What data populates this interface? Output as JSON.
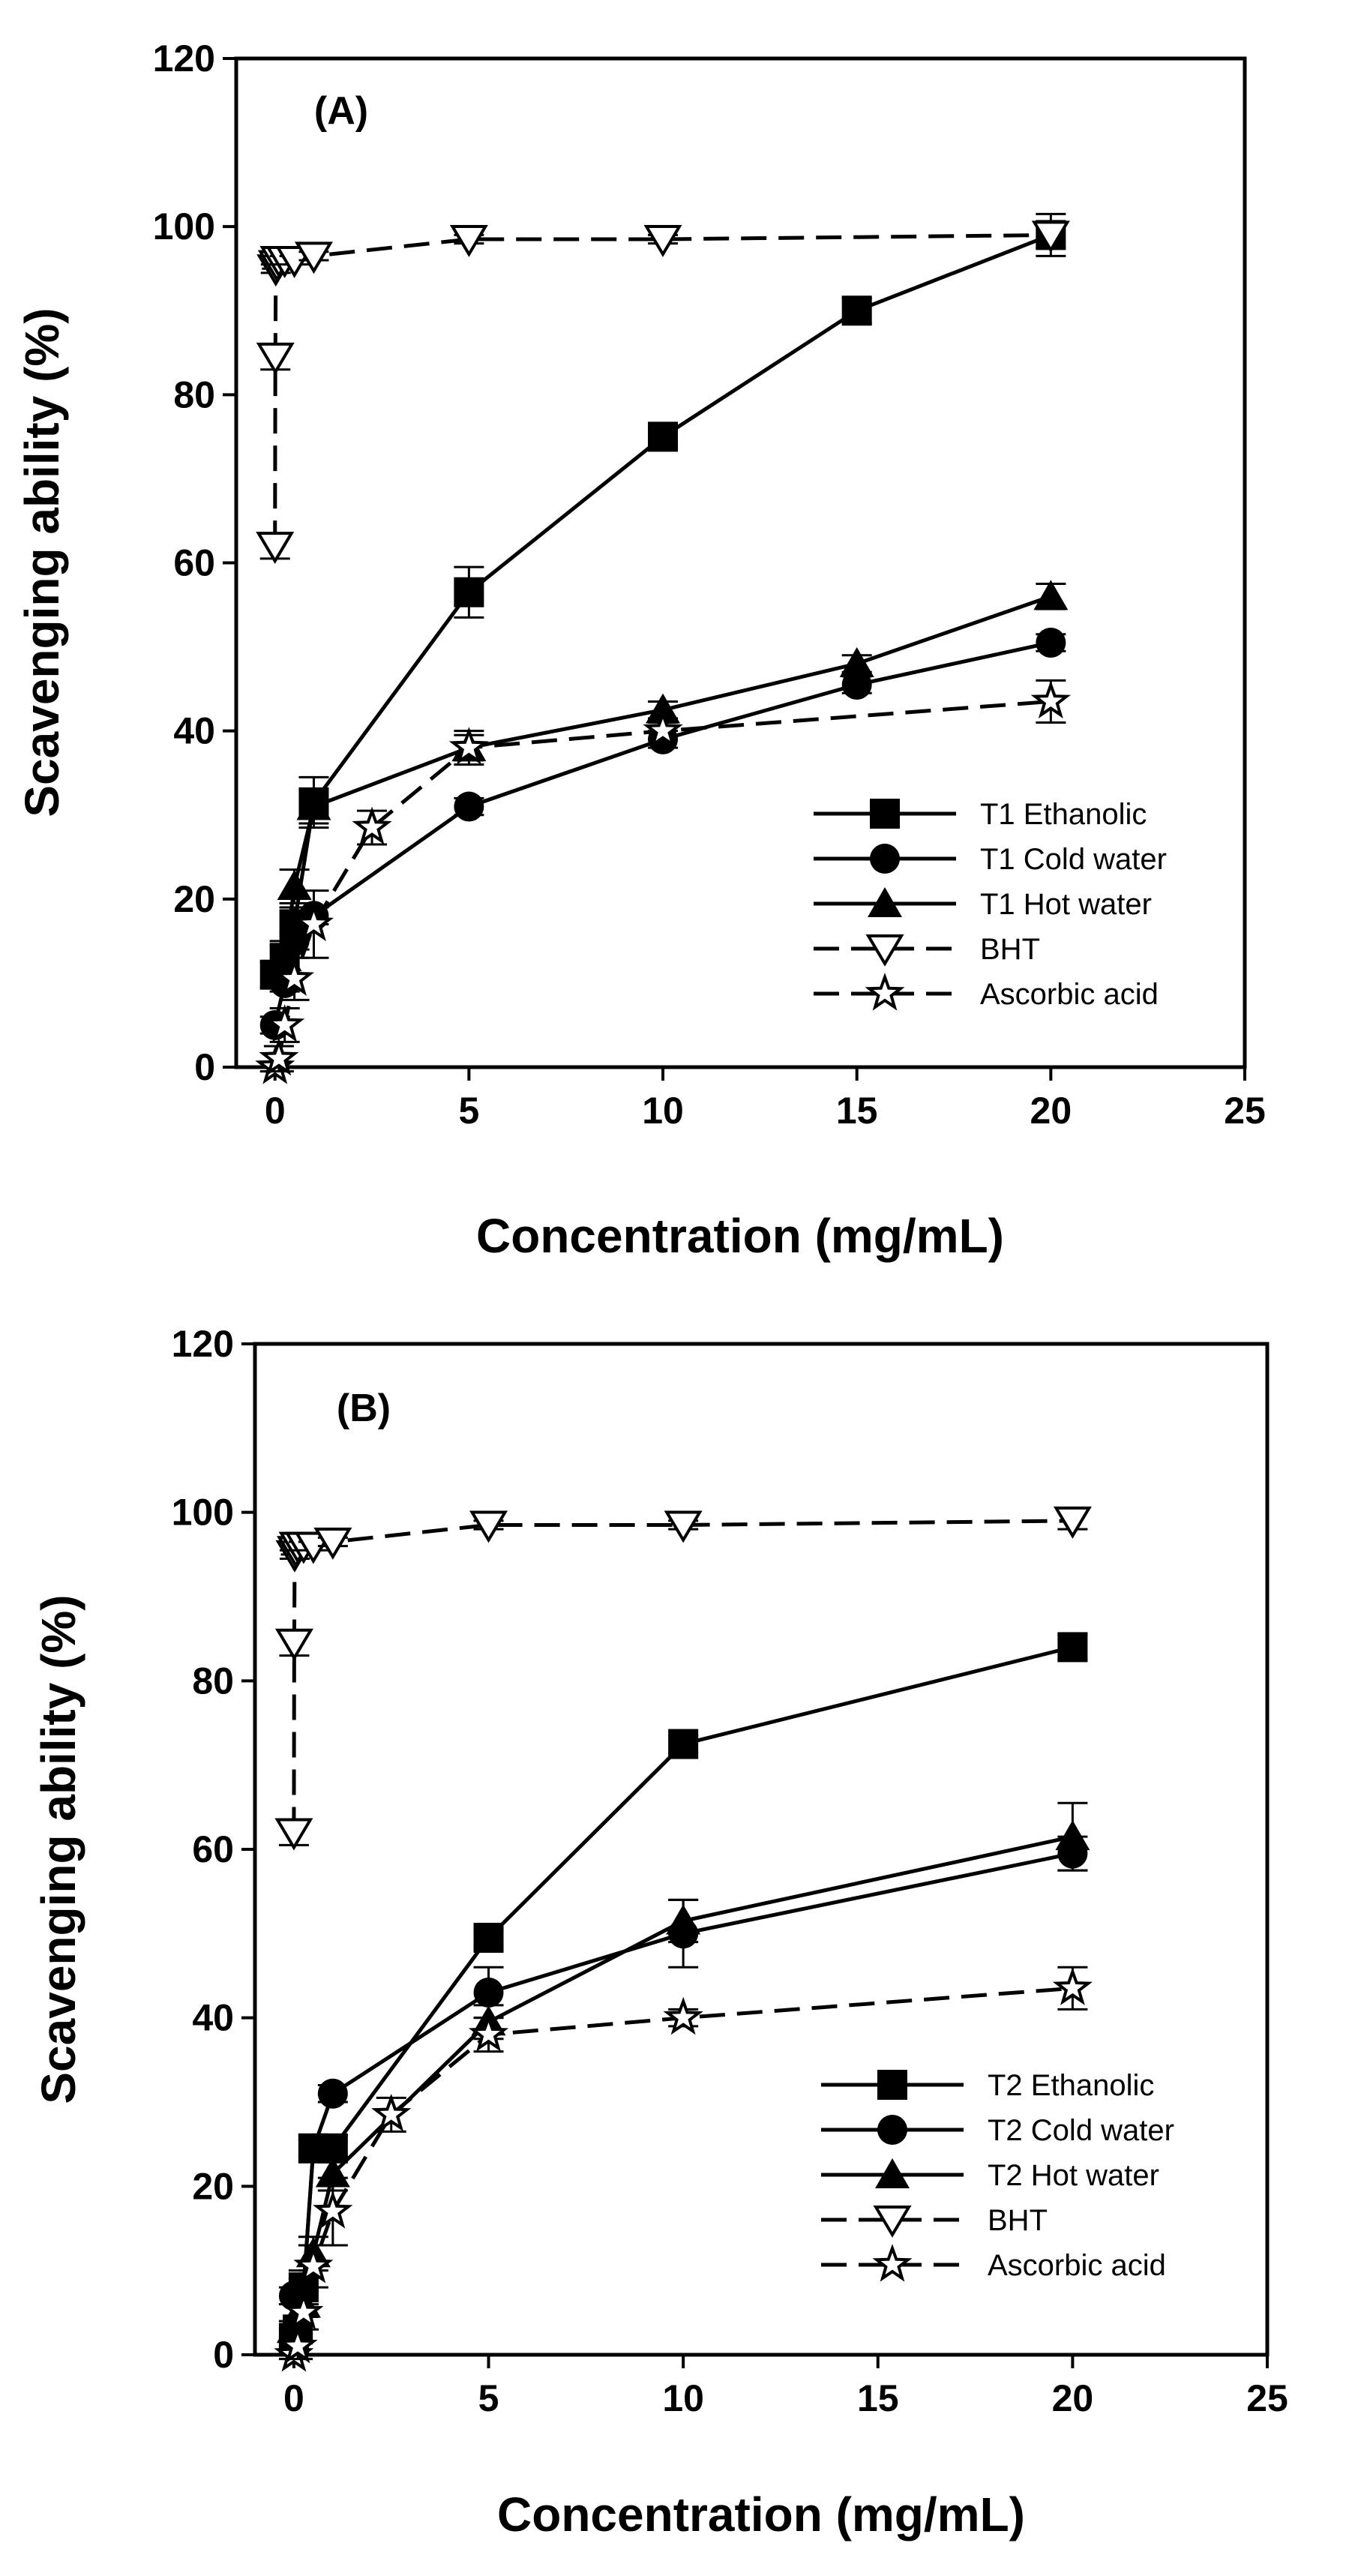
{
  "chart_data": [
    {
      "type": "line",
      "panel_label": "(A)",
      "xlabel": "Concentration (mg/mL)",
      "ylabel": "Scavenging ability (%)",
      "xlim": [
        -1,
        25
      ],
      "ylim": [
        0,
        120
      ],
      "xticks": [
        0,
        5,
        10,
        15,
        20,
        25
      ],
      "yticks": [
        0,
        20,
        40,
        60,
        80,
        100,
        120
      ],
      "legend_position": "center-right",
      "series": [
        {
          "name": "T1 Ethanolic",
          "marker": "square-filled",
          "dash": "solid",
          "x": [
            0,
            0.25,
            0.5,
            1,
            5,
            10,
            15,
            20
          ],
          "y": [
            11,
            13,
            17,
            31.5,
            56.5,
            75,
            90,
            99
          ],
          "err": [
            1.5,
            1.5,
            2,
            3,
            3,
            1,
            1.5,
            1.5
          ]
        },
        {
          "name": "T1 Cold water",
          "marker": "circle-filled",
          "dash": "solid",
          "x": [
            0,
            0.25,
            0.5,
            1,
            5,
            10,
            15,
            20
          ],
          "y": [
            5,
            10,
            15,
            18,
            31,
            39,
            45.5,
            50.5
          ],
          "err": [
            1,
            1,
            1,
            1,
            1,
            1,
            1,
            1
          ]
        },
        {
          "name": "T1 Hot water",
          "marker": "triangle-up-filled",
          "dash": "solid",
          "x": [
            0.25,
            0.5,
            1,
            5,
            10,
            15,
            20
          ],
          "y": [
            13,
            21.5,
            31,
            38,
            42.5,
            48,
            56
          ],
          "err": [
            2,
            2,
            2,
            1.5,
            1,
            1,
            1.5
          ]
        },
        {
          "name": "BHT",
          "marker": "triangle-down-open",
          "dash": "dashed",
          "x": [
            0,
            0.01,
            0.02,
            0.05,
            0.1,
            0.25,
            0.5,
            1,
            5,
            10,
            20
          ],
          "y": [
            62,
            84.5,
            95,
            95.5,
            96,
            96,
            96,
            96.5,
            98.5,
            98.5,
            99
          ],
          "err": [
            1.5,
            1.5,
            0.5,
            0.5,
            0.5,
            0.5,
            0.5,
            0.5,
            0.5,
            0.5,
            2.5
          ]
        },
        {
          "name": "Ascorbic acid",
          "marker": "star-open",
          "dash": "dashed",
          "x": [
            0,
            0.1,
            0.25,
            0.5,
            1,
            2.5,
            5,
            10,
            20
          ],
          "y": [
            0,
            1,
            5,
            10.5,
            17,
            28.5,
            38,
            40,
            43.5
          ],
          "err": [
            0.5,
            1.5,
            2,
            2.5,
            4,
            2,
            2,
            1,
            2.5
          ]
        }
      ]
    },
    {
      "type": "line",
      "panel_label": "(B)",
      "xlabel": "Concentration (mg/mL)",
      "ylabel": "Scavenging ability (%)",
      "xlim": [
        -1,
        25
      ],
      "ylim": [
        0,
        120
      ],
      "xticks": [
        0,
        5,
        10,
        15,
        20,
        25
      ],
      "yticks": [
        0,
        20,
        40,
        60,
        80,
        100,
        120
      ],
      "legend_position": "bottom-right",
      "series": [
        {
          "name": "T2 Ethanolic",
          "marker": "square-filled",
          "dash": "solid",
          "x": [
            0,
            0.1,
            0.25,
            0.5,
            1,
            5,
            10,
            20
          ],
          "y": [
            2,
            3,
            8,
            24.5,
            24.5,
            49.5,
            72.5,
            84
          ],
          "err": [
            1,
            1,
            2,
            1.5,
            1.5,
            1,
            1,
            1.5
          ]
        },
        {
          "name": "T2 Cold water",
          "marker": "circle-filled",
          "dash": "solid",
          "x": [
            0,
            0.25,
            0.5,
            1,
            5,
            10,
            20
          ],
          "y": [
            7,
            8,
            24.5,
            31,
            43,
            50,
            59.5
          ],
          "err": [
            1,
            1,
            1,
            1,
            3,
            4,
            2
          ]
        },
        {
          "name": "T2 Hot water",
          "marker": "triangle-up-filled",
          "dash": "solid",
          "x": [
            0,
            0.25,
            0.5,
            1,
            5,
            10,
            20
          ],
          "y": [
            3,
            6,
            12,
            21.5,
            39.5,
            51.5,
            61.5
          ],
          "err": [
            1,
            1.5,
            2,
            2,
            2,
            2.5,
            4
          ]
        },
        {
          "name": "BHT",
          "marker": "triangle-down-open",
          "dash": "dashed",
          "x": [
            0,
            0.01,
            0.02,
            0.05,
            0.1,
            0.25,
            0.5,
            1,
            5,
            10,
            20
          ],
          "y": [
            62,
            84.5,
            95,
            95.5,
            96,
            96,
            96,
            96.5,
            98.5,
            98.5,
            99
          ],
          "err": [
            1.5,
            1.5,
            0.5,
            0.5,
            0.5,
            0.5,
            0.5,
            0.5,
            0.5,
            0.5,
            1
          ]
        },
        {
          "name": "Ascorbic acid",
          "marker": "star-open",
          "dash": "dashed",
          "x": [
            0,
            0.1,
            0.25,
            0.5,
            1,
            2.5,
            5,
            10,
            20
          ],
          "y": [
            0,
            1,
            5,
            10.5,
            17,
            28.5,
            38,
            40,
            43.5
          ],
          "err": [
            0.5,
            1.5,
            2,
            2.5,
            4,
            2,
            2,
            1,
            2.5
          ]
        }
      ]
    }
  ]
}
